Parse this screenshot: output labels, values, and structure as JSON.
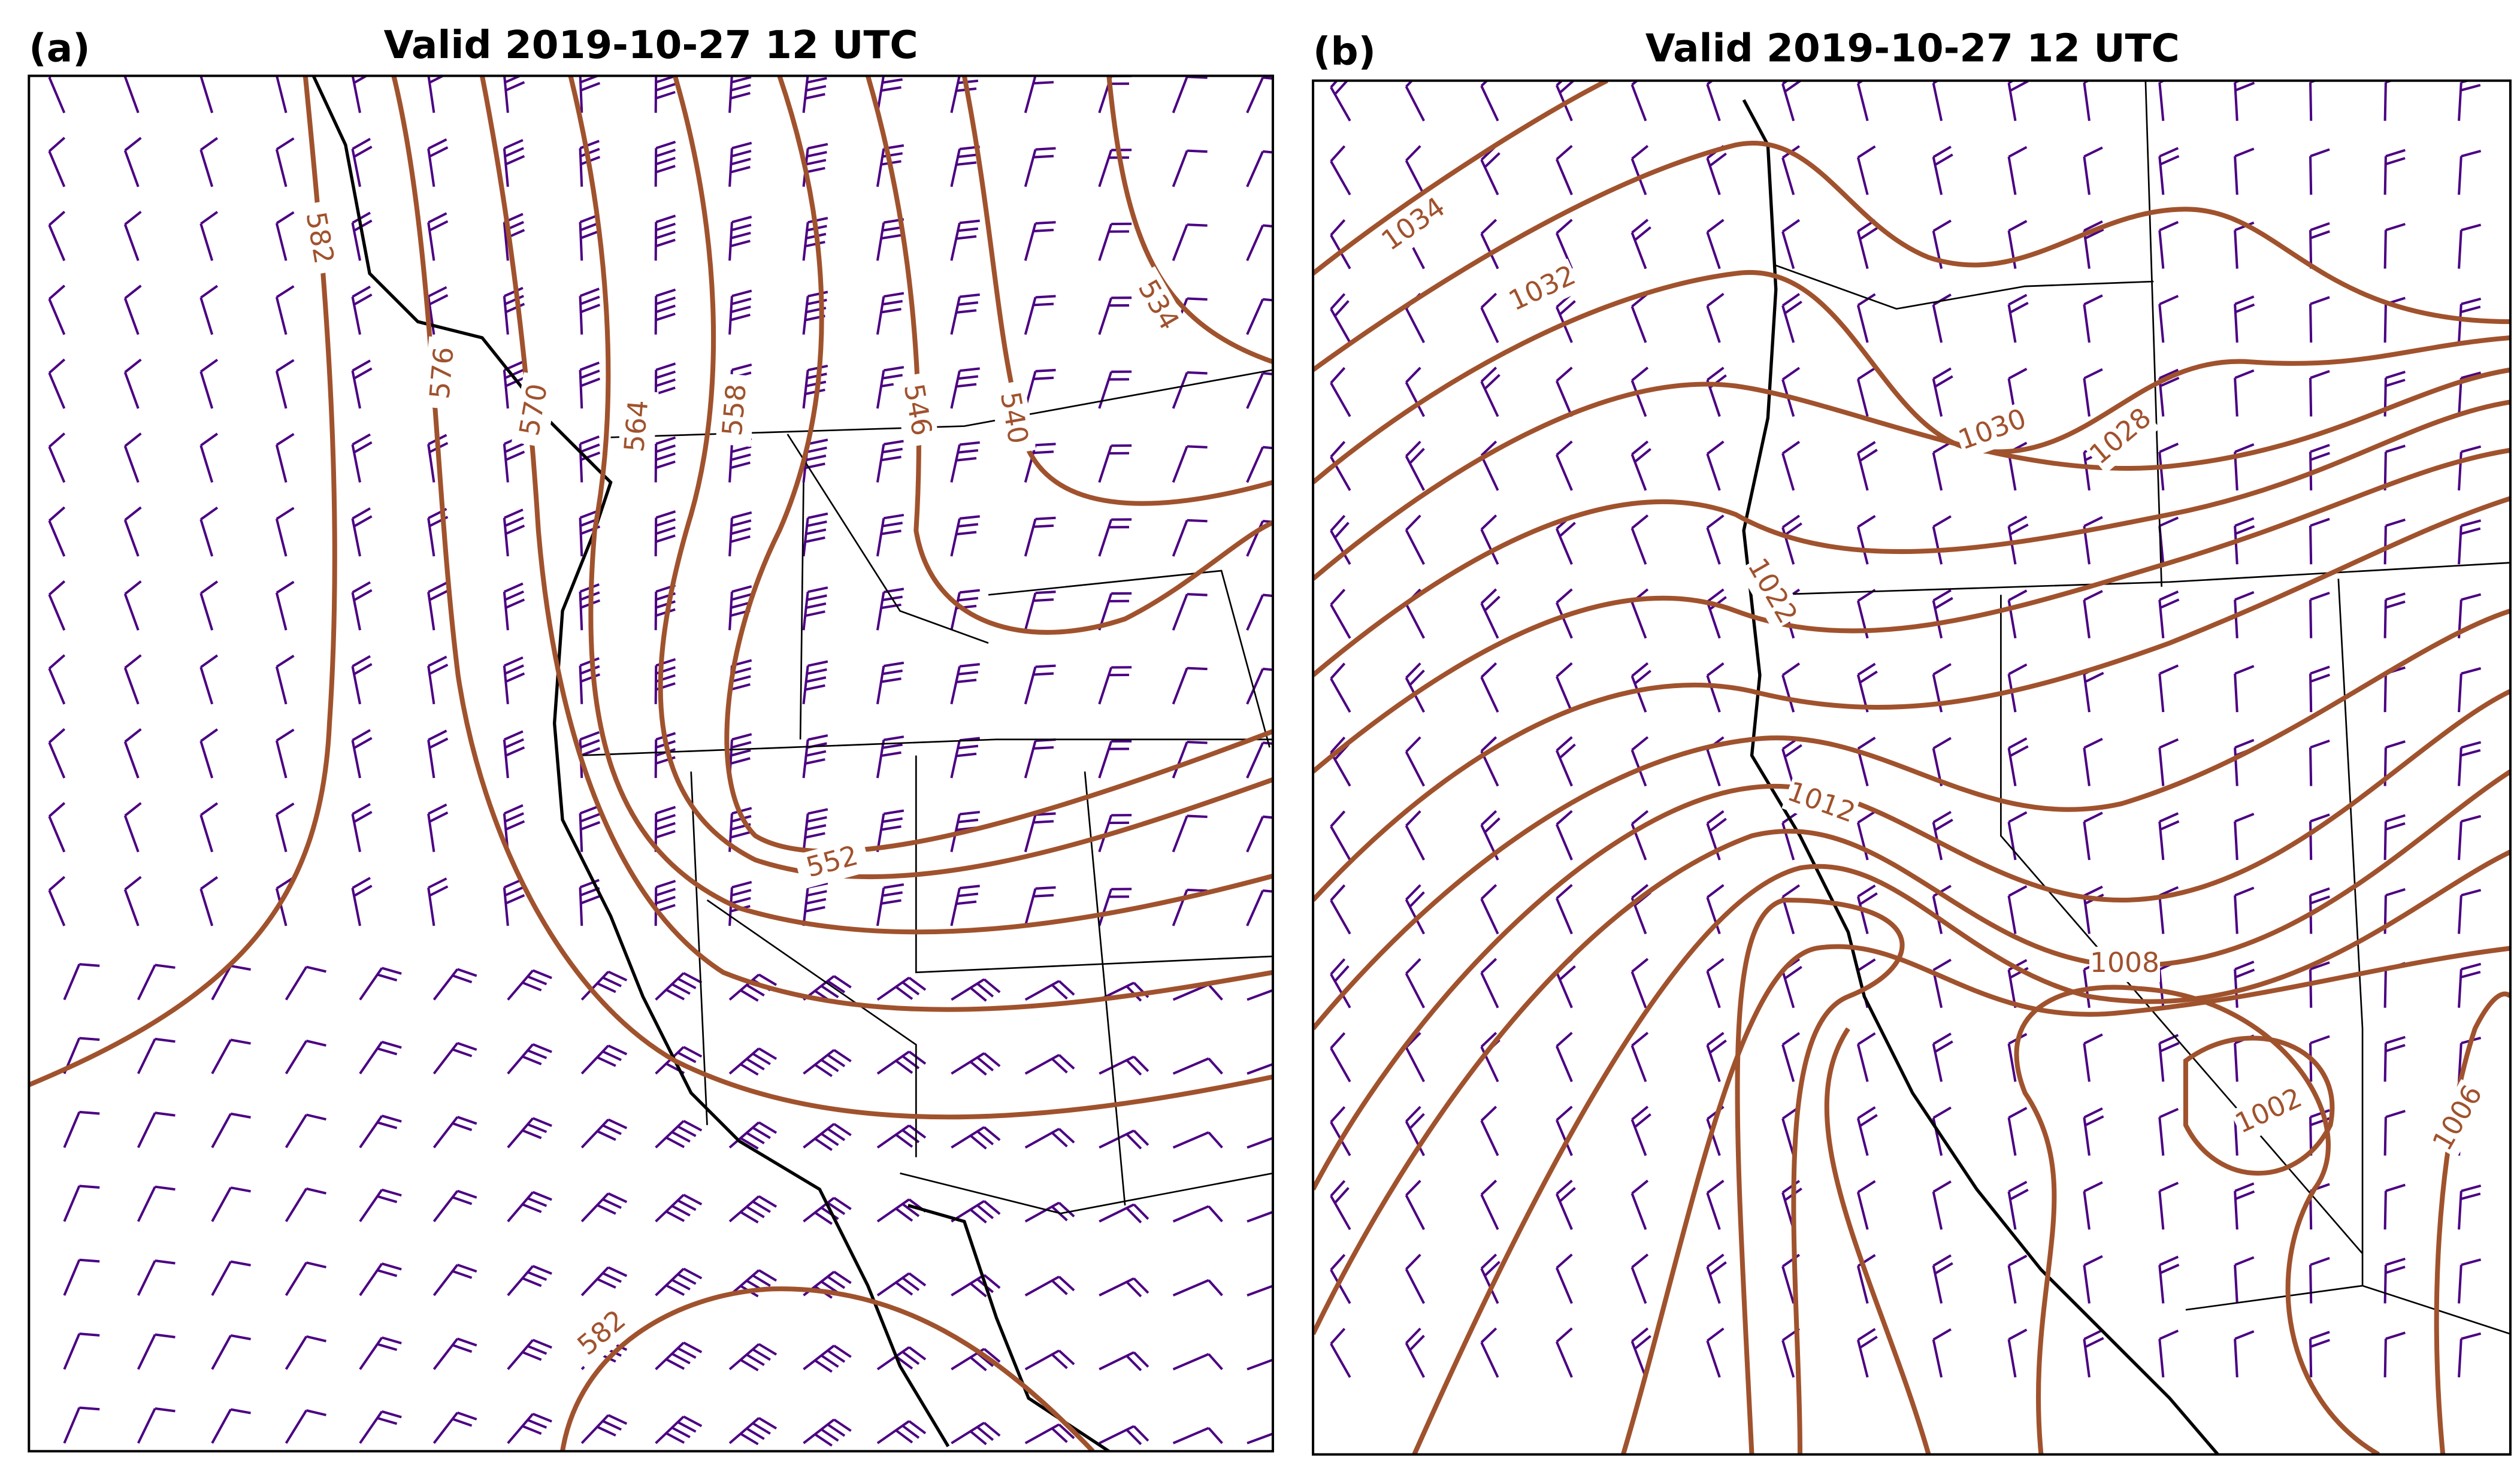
{
  "panels": [
    {
      "label": "(a)",
      "title": "Valid 2019-10-27 12 UTC",
      "contour_labels": [
        "582",
        "576",
        "570",
        "564",
        "558",
        "546",
        "540",
        "534",
        "552",
        "582"
      ]
    },
    {
      "label": "(b)",
      "title": "Valid 2019-10-27 12 UTC",
      "contour_labels": [
        "1034",
        "1032",
        "1030",
        "1028",
        "1022",
        "1012",
        "1008",
        "1002",
        "1006"
      ]
    }
  ]
}
